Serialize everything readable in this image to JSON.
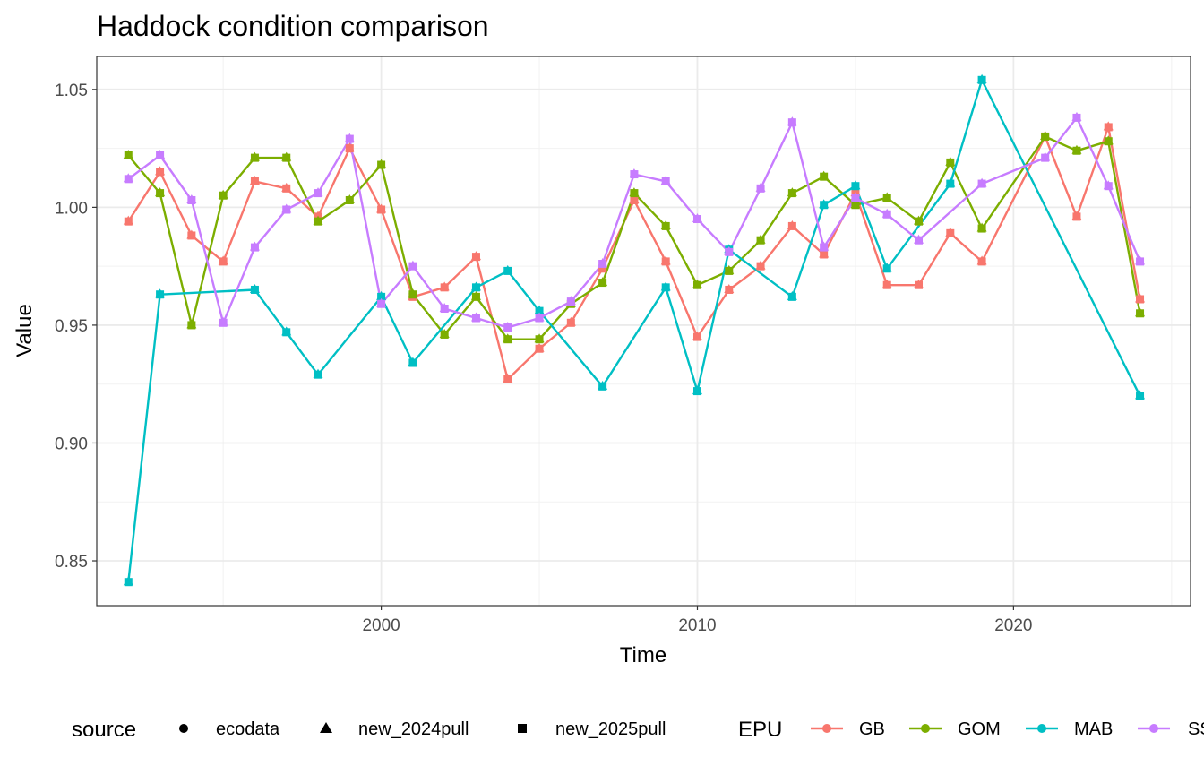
{
  "chart_data": {
    "type": "line",
    "title": "Haddock condition comparison",
    "xlabel": "Time",
    "ylabel": "Value",
    "xlim": [
      1991,
      2025.6
    ],
    "ylim": [
      0.831,
      1.064
    ],
    "x_ticks": [
      2000,
      2010,
      2020
    ],
    "y_ticks": [
      0.85,
      0.9,
      0.95,
      1.0,
      1.05
    ],
    "y_tick_labels": [
      "0.85",
      "0.90",
      "0.95",
      "1.00",
      "1.05"
    ],
    "grid": true,
    "legend_position": "bottom",
    "legends": {
      "source": {
        "title": "source",
        "items": [
          {
            "label": "ecodata",
            "shape": "circle"
          },
          {
            "label": "new_2024pull",
            "shape": "triangle"
          },
          {
            "label": "new_2025pull",
            "shape": "square"
          }
        ]
      },
      "epu": {
        "title": "EPU",
        "items": [
          {
            "label": "GB",
            "color": "#F8766D"
          },
          {
            "label": "GOM",
            "color": "#7CAE00"
          },
          {
            "label": "MAB",
            "color": "#00BFC4"
          },
          {
            "label": "SS",
            "color": "#C77CFF"
          }
        ]
      }
    },
    "series": [
      {
        "name": "GB",
        "color": "#F8766D",
        "x": [
          1992,
          1993,
          1994,
          1995,
          1996,
          1997,
          1998,
          1999,
          2000,
          2001,
          2002,
          2003,
          2004,
          2005,
          2006,
          2007,
          2008,
          2009,
          2010,
          2011,
          2012,
          2013,
          2014,
          2015,
          2016,
          2017,
          2018,
          2019,
          2021,
          2022,
          2023,
          2024
        ],
        "y": [
          0.994,
          1.015,
          0.988,
          0.977,
          1.011,
          1.008,
          0.996,
          1.025,
          0.999,
          0.962,
          0.966,
          0.979,
          0.927,
          0.94,
          0.951,
          0.974,
          1.003,
          0.977,
          0.945,
          0.965,
          0.975,
          0.992,
          0.98,
          1.006,
          0.967,
          0.967,
          0.989,
          0.977,
          1.03,
          0.996,
          1.034,
          0.961
        ]
      },
      {
        "name": "GOM",
        "color": "#7CAE00",
        "x": [
          1992,
          1993,
          1994,
          1995,
          1996,
          1997,
          1998,
          1999,
          2000,
          2001,
          2002,
          2003,
          2004,
          2005,
          2006,
          2007,
          2008,
          2009,
          2010,
          2011,
          2012,
          2013,
          2014,
          2015,
          2016,
          2017,
          2018,
          2019,
          2021,
          2022,
          2023,
          2024
        ],
        "y": [
          1.022,
          1.006,
          0.95,
          1.005,
          1.021,
          1.021,
          0.994,
          1.003,
          1.018,
          0.963,
          0.946,
          0.962,
          0.944,
          0.944,
          0.959,
          0.968,
          1.006,
          0.992,
          0.967,
          0.973,
          0.986,
          1.006,
          1.013,
          1.001,
          1.004,
          0.994,
          1.019,
          0.991,
          1.03,
          1.024,
          1.028,
          0.955
        ]
      },
      {
        "name": "MAB",
        "color": "#00BFC4",
        "x": [
          1992,
          1993,
          1996,
          1997,
          1998,
          2000,
          2001,
          2003,
          2004,
          2005,
          2007,
          2009,
          2010,
          2011,
          2013,
          2014,
          2015,
          2016,
          2018,
          2019,
          2024
        ],
        "y": [
          0.841,
          0.963,
          0.965,
          0.947,
          0.929,
          0.962,
          0.934,
          0.966,
          0.973,
          0.956,
          0.924,
          0.966,
          0.922,
          0.982,
          0.962,
          1.001,
          1.009,
          0.974,
          1.01,
          1.054,
          0.92
        ]
      },
      {
        "name": "SS",
        "color": "#C77CFF",
        "x": [
          1992,
          1993,
          1994,
          1995,
          1996,
          1997,
          1998,
          1999,
          2000,
          2001,
          2002,
          2003,
          2004,
          2005,
          2006,
          2007,
          2008,
          2009,
          2010,
          2011,
          2012,
          2013,
          2014,
          2015,
          2016,
          2017,
          2019,
          2021,
          2022,
          2023,
          2024
        ],
        "y": [
          1.012,
          1.022,
          1.003,
          0.951,
          0.983,
          0.999,
          1.006,
          1.029,
          0.959,
          0.975,
          0.957,
          0.953,
          0.949,
          0.953,
          0.96,
          0.976,
          1.014,
          1.011,
          0.995,
          0.981,
          1.008,
          1.036,
          0.983,
          1.004,
          0.997,
          0.986,
          1.01,
          1.021,
          1.038,
          1.009,
          0.977
        ]
      }
    ]
  }
}
